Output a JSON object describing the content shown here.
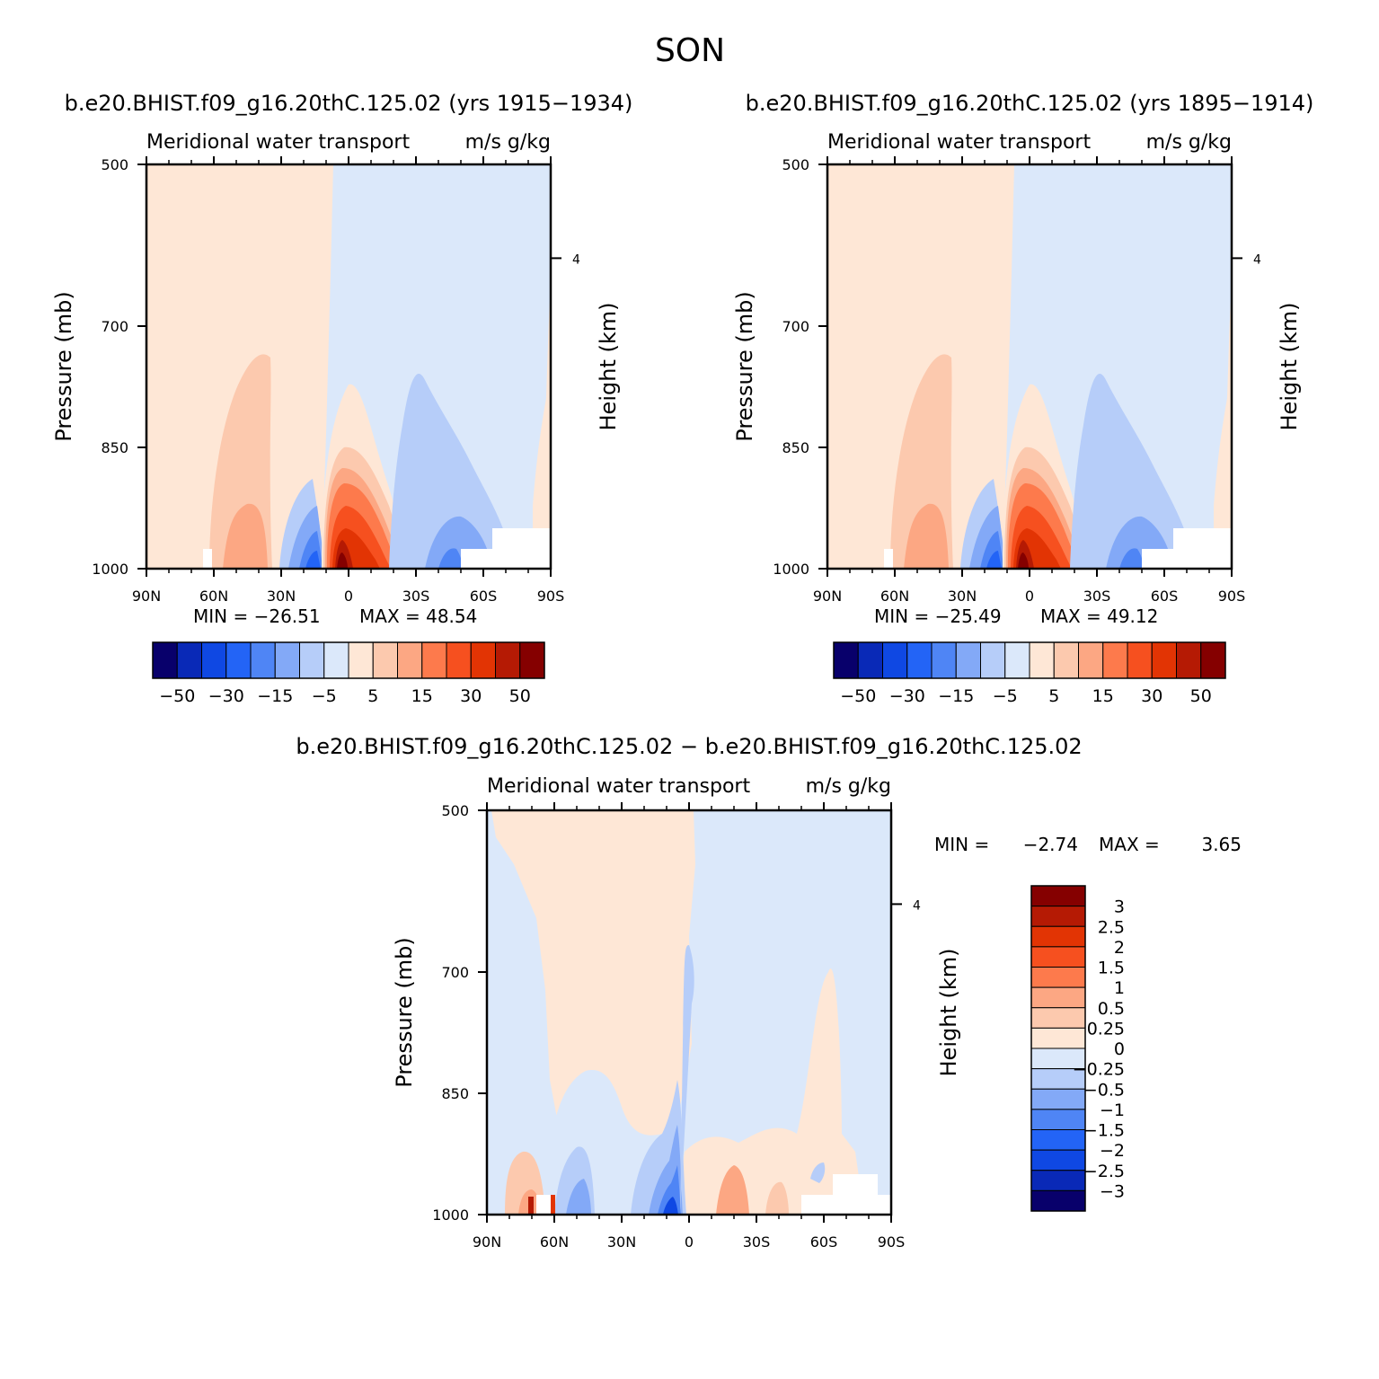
{
  "figure": {
    "title": "SON"
  },
  "colors": {
    "diverging16": [
      "#08006b",
      "#0929b7",
      "#0f48e3",
      "#2364f6",
      "#4f85f5",
      "#83a9f7",
      "#b6cdf9",
      "#dbe8fa",
      "#fee7d6",
      "#fcc9ae",
      "#fca783",
      "#fd7a4c",
      "#f6501f",
      "#e23404",
      "#b51a04",
      "#850000"
    ]
  },
  "chart_data": [
    {
      "type": "heatmap",
      "panel": "top-left",
      "title": "b.e20.BHIST.f09_g16.20thC.125.02 (yrs 1915−1934)",
      "subtitle_left": "Meridional water transport",
      "subtitle_right": "m/s g/kg",
      "xlabel": "",
      "ylabel": "Pressure (mb)",
      "ylabel_right": "Height (km)",
      "x_ticks": [
        "90N",
        "60N",
        "30N",
        "0",
        "30S",
        "60S",
        "90S"
      ],
      "x_tick_values": [
        90,
        60,
        30,
        0,
        -30,
        -60,
        -90
      ],
      "y_ticks": [
        "500",
        "700",
        "850",
        "1000"
      ],
      "y_tick_values": [
        500,
        700,
        850,
        1000
      ],
      "y_right_ticks": [
        "4"
      ],
      "y_right_tick_values": [
        616
      ],
      "ylim": [
        500,
        1000
      ],
      "xlim": [
        90,
        -90
      ],
      "min_label": "MIN = −26.51",
      "max_label": "MAX =  48.54",
      "min": -26.51,
      "max": 48.54,
      "colorbar_labels": [
        "−50",
        "−30",
        "−15",
        "−5",
        "5",
        "15",
        "30",
        "50"
      ],
      "contour_levels": [
        -50,
        -40,
        -30,
        -20,
        -15,
        -10,
        -5,
        0,
        5,
        10,
        15,
        20,
        30,
        40,
        50
      ],
      "features": [
        {
          "lat": -2,
          "p": 980,
          "value": 48.5
        },
        {
          "lat": 48,
          "p": 950,
          "value": 12
        },
        {
          "lat": 18,
          "p": 990,
          "value": -26.5
        },
        {
          "lat": -44,
          "p": 970,
          "value": -12
        }
      ]
    },
    {
      "type": "heatmap",
      "panel": "top-right",
      "title": "b.e20.BHIST.f09_g16.20thC.125.02 (yrs 1895−1914)",
      "subtitle_left": "Meridional water transport",
      "subtitle_right": "m/s g/kg",
      "ylabel": "Pressure (mb)",
      "ylabel_right": "Height (km)",
      "x_ticks": [
        "90N",
        "60N",
        "30N",
        "0",
        "30S",
        "60S",
        "90S"
      ],
      "x_tick_values": [
        90,
        60,
        30,
        0,
        -30,
        -60,
        -90
      ],
      "y_ticks": [
        "500",
        "700",
        "850",
        "1000"
      ],
      "y_tick_values": [
        500,
        700,
        850,
        1000
      ],
      "y_right_ticks": [
        "4"
      ],
      "y_right_tick_values": [
        616
      ],
      "ylim": [
        500,
        1000
      ],
      "xlim": [
        90,
        -90
      ],
      "min_label": "MIN = −25.49",
      "max_label": "MAX =  49.12",
      "min": -25.49,
      "max": 49.12,
      "colorbar_labels": [
        "−50",
        "−30",
        "−15",
        "−5",
        "5",
        "15",
        "30",
        "50"
      ],
      "contour_levels": [
        -50,
        -40,
        -30,
        -20,
        -15,
        -10,
        -5,
        0,
        5,
        10,
        15,
        20,
        30,
        40,
        50
      ],
      "features": [
        {
          "lat": -2,
          "p": 980,
          "value": 49.1
        },
        {
          "lat": 48,
          "p": 950,
          "value": 12
        },
        {
          "lat": 18,
          "p": 990,
          "value": -25.5
        },
        {
          "lat": -44,
          "p": 970,
          "value": -12
        }
      ]
    },
    {
      "type": "heatmap",
      "panel": "bottom",
      "title": "b.e20.BHIST.f09_g16.20thC.125.02 − b.e20.BHIST.f09_g16.20thC.125.02",
      "subtitle_left": "Meridional water transport",
      "subtitle_right": "m/s g/kg",
      "ylabel": "Pressure (mb)",
      "ylabel_right": "Height (km)",
      "x_ticks": [
        "90N",
        "60N",
        "30N",
        "0",
        "30S",
        "60S",
        "90S"
      ],
      "x_tick_values": [
        90,
        60,
        30,
        0,
        -30,
        -60,
        -90
      ],
      "y_ticks": [
        "500",
        "700",
        "850",
        "1000"
      ],
      "y_tick_values": [
        500,
        700,
        850,
        1000
      ],
      "y_right_ticks": [
        "4"
      ],
      "y_right_tick_values": [
        616
      ],
      "ylim": [
        500,
        1000
      ],
      "xlim": [
        90,
        -90
      ],
      "min_label": "MIN =",
      "min_value": "−2.74",
      "max_label": "MAX =",
      "max_value": "3.65",
      "min": -2.74,
      "max": 3.65,
      "colorbar_labels": [
        "3",
        "2.5",
        "2",
        "1.5",
        "1",
        "0.5",
        "0.25",
        "0",
        "−0.25",
        "−0.5",
        "−1",
        "−1.5",
        "−2",
        "−2.5",
        "−3"
      ],
      "contour_levels": [
        -3,
        -2.5,
        -2,
        -1.5,
        -1,
        -0.5,
        -0.25,
        0,
        0.25,
        0.5,
        1,
        1.5,
        2,
        2.5,
        3
      ],
      "features": [
        {
          "lat": 62,
          "p": 990,
          "value": 3.65
        },
        {
          "lat": 8,
          "p": 985,
          "value": -2.74
        },
        {
          "lat": -20,
          "p": 970,
          "value": 0.5
        }
      ]
    }
  ]
}
